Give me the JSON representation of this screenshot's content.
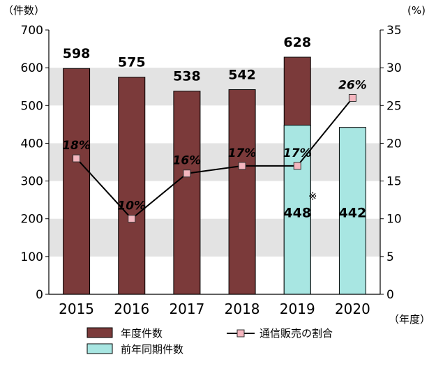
{
  "chart_data": {
    "type": "bar",
    "categories": [
      "2015",
      "2016",
      "2017",
      "2018",
      "2019",
      "2020"
    ],
    "series": [
      {
        "name": "年度件数",
        "type": "bar",
        "axis": "left",
        "color": "#7b3a3a",
        "values": [
          598,
          575,
          538,
          542,
          628,
          null
        ]
      },
      {
        "name": "前年同期件数",
        "type": "bar",
        "axis": "left",
        "color": "#a8e6e2",
        "values": [
          null,
          null,
          null,
          null,
          448,
          442
        ]
      },
      {
        "name": "通信販売の割合",
        "type": "line",
        "axis": "right",
        "color": "#f4b6bf",
        "values": [
          18,
          10,
          16,
          17,
          17,
          26
        ],
        "labels": [
          "18%",
          "10%",
          "16%",
          "17%",
          "17%",
          "26%"
        ]
      }
    ],
    "bar_labels": {
      "total": [
        "598",
        "575",
        "538",
        "542",
        "628",
        ""
      ],
      "prior": [
        "",
        "",
        "",
        "",
        "448",
        "442"
      ]
    },
    "note_mark": "※",
    "y_left": {
      "label": "（件数）",
      "lim": [
        0,
        700
      ],
      "ticks": [
        "0",
        "100",
        "200",
        "300",
        "400",
        "500",
        "600",
        "700"
      ]
    },
    "y_right": {
      "label": "(%)",
      "lim": [
        0,
        35
      ],
      "ticks": [
        "0",
        "5",
        "10",
        "15",
        "20",
        "25",
        "30",
        "35"
      ]
    },
    "x_unit": "（年度）",
    "legend_position": "bottom",
    "grid": "alternating bands",
    "band_color": "#e3e3e3",
    "line_stroke": "#000000"
  }
}
